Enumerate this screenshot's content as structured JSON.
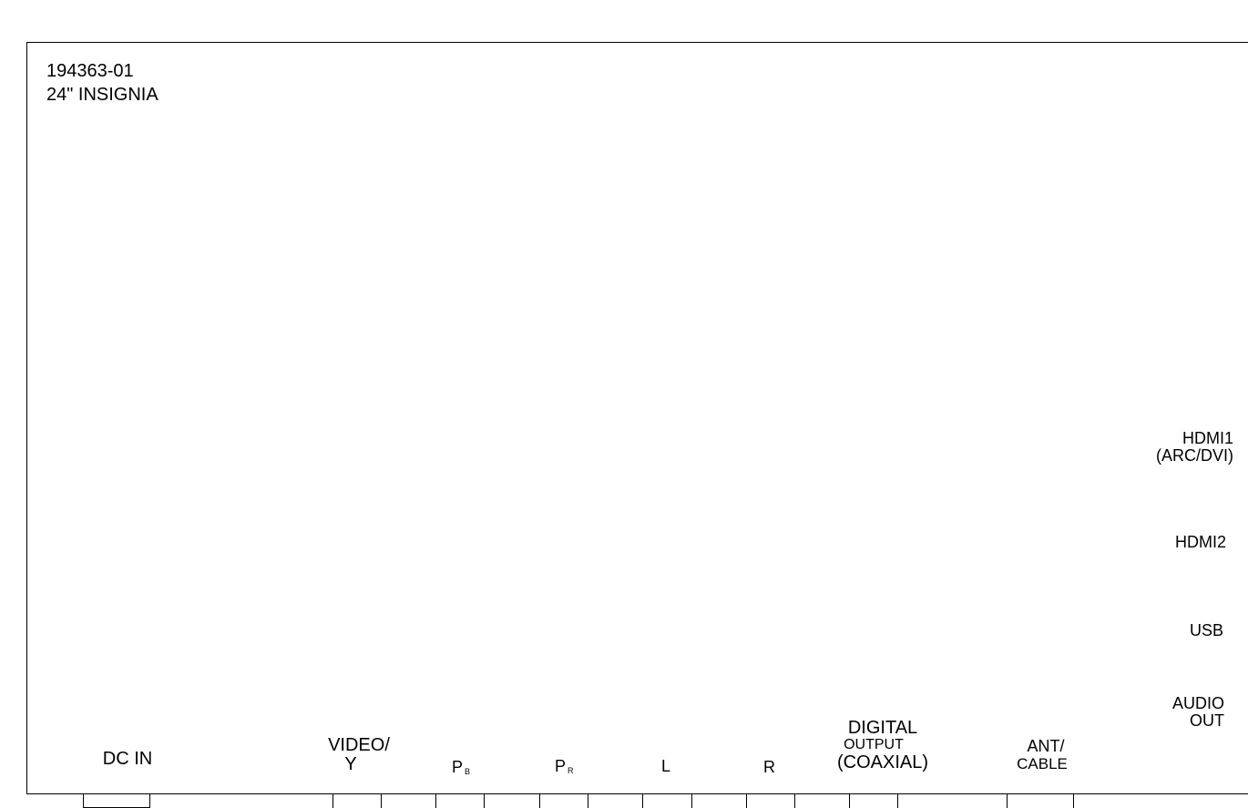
{
  "header": {
    "part_number": "194363-01",
    "model": "24\" INSIGNIA"
  },
  "side_labels": {
    "hdmi1_line1": "HDMI1",
    "hdmi1_line2": "(ARC/DVI)",
    "hdmi2": "HDMI2",
    "usb": "USB",
    "audio_out_line1": "AUDIO",
    "audio_out_line2": "OUT"
  },
  "bottom_labels": {
    "dc_in": "DC IN",
    "video_line1": "VIDEO/",
    "video_line2": "Y",
    "pb_letter": "P",
    "pb_sub": "B",
    "pr_letter": "P",
    "pr_sub": "R",
    "left": "L",
    "right": "R",
    "digital_line1": "DIGITAL",
    "digital_line2": "OUTPUT",
    "digital_line3": "(COAXIAL)",
    "ant_line1": "ANT/",
    "ant_line2": "CABLE"
  }
}
